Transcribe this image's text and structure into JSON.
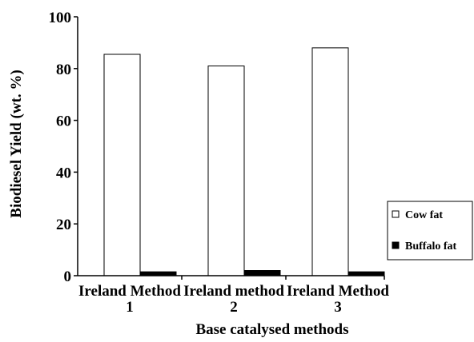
{
  "chart_data": {
    "type": "bar",
    "title": "",
    "xlabel": "Base catalysed methods",
    "ylabel": "Biodiesel Yield (wt. %)",
    "ylim": [
      0,
      100
    ],
    "yticks": [
      0,
      20,
      40,
      60,
      80,
      100
    ],
    "categories": [
      [
        "Ireland Method",
        "1"
      ],
      [
        "Ireland method",
        "2"
      ],
      [
        "Ireland Method",
        "3"
      ]
    ],
    "series": [
      {
        "name": "Cow fat",
        "values": [
          85.5,
          81,
          88
        ],
        "color": "#ffffff"
      },
      {
        "name": "Buffalo fat",
        "values": [
          1.5,
          2,
          1.5
        ],
        "color": "#000000"
      }
    ],
    "legend": "right",
    "grid": false
  }
}
